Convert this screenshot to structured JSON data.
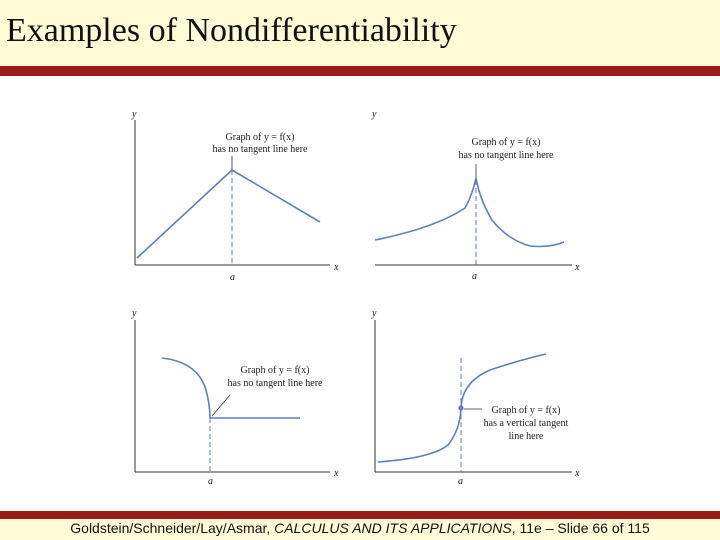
{
  "slide": {
    "title": "Examples of Nondifferentiability",
    "footer": {
      "authors": "Goldstein/Schneider/Lay/Asmar, ",
      "book": "CALCULUS AND ITS APPLICATIONS",
      "rest": ", 11e – Slide 66 of 115"
    }
  },
  "colors": {
    "band": "#fffbd6",
    "rule": "#9b1a1a",
    "curve": "#5b7fc0"
  },
  "panels": [
    {
      "y_axis": "y",
      "x_axis": "x",
      "a_label": "a",
      "caption_line1": "Graph of y = f(x)",
      "caption_line2": "has no tangent line here"
    },
    {
      "y_axis": "y",
      "x_axis": "x",
      "a_label": "a",
      "caption_line1": "Graph of y = f(x)",
      "caption_line2": "has no tangent line here"
    },
    {
      "y_axis": "y",
      "x_axis": "x",
      "a_label": "a",
      "caption_line1": "Graph of y = f(x)",
      "caption_line2": "has no tangent line here"
    },
    {
      "y_axis": "y",
      "x_axis": "x",
      "a_label": "a",
      "caption_line1": "Graph of y = f(x)",
      "caption_line2": "has a vertical tangent",
      "caption_line3": "line here"
    }
  ]
}
